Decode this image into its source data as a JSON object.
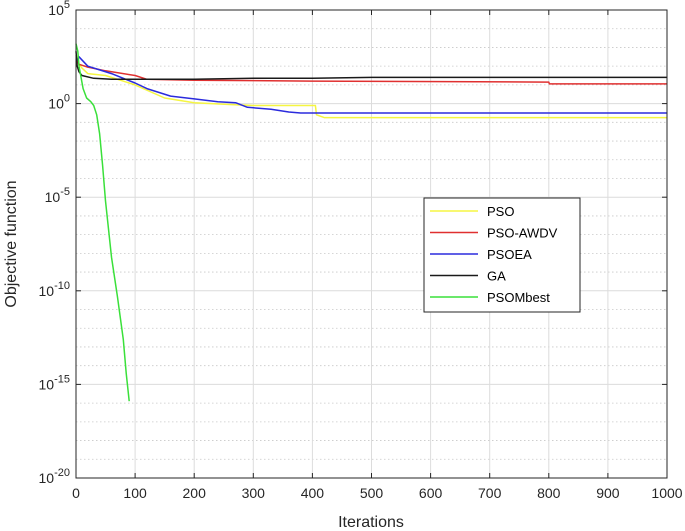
{
  "chart_data": {
    "type": "line",
    "xlabel": "Iterations",
    "ylabel": "Objective function",
    "xlim": [
      0,
      1000
    ],
    "ylim_exp": [
      -20,
      5
    ],
    "y_scale": "log",
    "grid": true,
    "minor_grid": "dotted",
    "legend_position": "right-center",
    "x_ticks": [
      "0",
      "100",
      "200",
      "300",
      "400",
      "500",
      "600",
      "700",
      "800",
      "900",
      "1000"
    ],
    "y_ticks": [
      {
        "exp": 5,
        "base": "10",
        "sup": "5"
      },
      {
        "exp": 0,
        "base": "10",
        "sup": "0"
      },
      {
        "exp": -5,
        "base": "10",
        "sup": "-5"
      },
      {
        "exp": -10,
        "base": "10",
        "sup": "-10"
      },
      {
        "exp": -15,
        "base": "10",
        "sup": "-15"
      },
      {
        "exp": -20,
        "base": "10",
        "sup": "-20"
      }
    ],
    "series": [
      {
        "name": "PSO",
        "color": "#f5f542",
        "x": [
          0,
          3,
          10,
          20,
          50,
          100,
          150,
          200,
          260,
          300,
          340,
          405,
          407,
          420,
          1000
        ],
        "log10_y": [
          2.6,
          2.2,
          1.9,
          1.6,
          1.5,
          1.0,
          0.3,
          0.05,
          -0.05,
          -0.1,
          -0.1,
          -0.1,
          -0.6,
          -0.75,
          -0.75
        ]
      },
      {
        "name": "PSO-AWDV",
        "color": "#e03030",
        "x": [
          0,
          5,
          20,
          50,
          100,
          120,
          200,
          400,
          800,
          801,
          1000
        ],
        "log10_y": [
          2.4,
          2.1,
          1.95,
          1.75,
          1.5,
          1.3,
          1.25,
          1.2,
          1.15,
          1.05,
          1.05
        ]
      },
      {
        "name": "PSOEA",
        "color": "#2b2bdd",
        "x": [
          0,
          5,
          20,
          40,
          60,
          100,
          120,
          160,
          200,
          240,
          270,
          290,
          330,
          360,
          380,
          450,
          600,
          800,
          1000
        ],
        "log10_y": [
          2.2,
          2.5,
          2.0,
          1.8,
          1.6,
          1.1,
          0.8,
          0.4,
          0.25,
          0.1,
          0.05,
          -0.2,
          -0.3,
          -0.45,
          -0.5,
          -0.5,
          -0.5,
          -0.5,
          -0.5
        ]
      },
      {
        "name": "GA",
        "color": "#1a1a1a",
        "x": [
          0,
          2,
          5,
          10,
          30,
          60,
          100,
          200,
          300,
          400,
          500,
          600,
          700,
          800,
          900,
          1000
        ],
        "log10_y": [
          2.8,
          2.0,
          1.7,
          1.5,
          1.35,
          1.3,
          1.3,
          1.3,
          1.35,
          1.35,
          1.4,
          1.4,
          1.4,
          1.4,
          1.4,
          1.4
        ]
      },
      {
        "name": "PSOMbest",
        "color": "#3ae03a",
        "x": [
          0,
          3,
          5,
          8,
          12,
          18,
          25,
          30,
          35,
          40,
          45,
          50,
          60,
          70,
          80,
          85,
          90
        ],
        "log10_y": [
          3.2,
          2.8,
          2.0,
          1.5,
          0.8,
          0.3,
          0.1,
          -0.1,
          -0.6,
          -1.6,
          -3.3,
          -5.2,
          -8.2,
          -10.3,
          -12.6,
          -14.4,
          -15.9
        ]
      }
    ]
  }
}
